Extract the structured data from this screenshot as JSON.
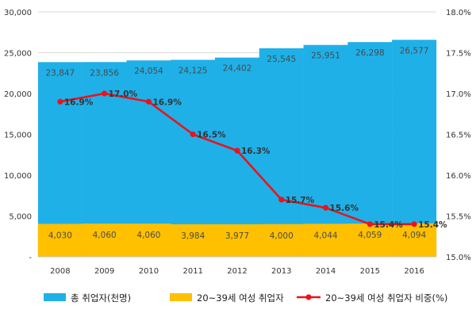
{
  "chart_data": {
    "type": "bar",
    "categories": [
      "2008",
      "2009",
      "2010",
      "2011",
      "2012",
      "2013",
      "2014",
      "2015",
      "2016"
    ],
    "series": [
      {
        "name": "총 취업자(천명)",
        "kind": "bar",
        "axis": "left",
        "color": "#1fb0e8",
        "values": [
          23847,
          23856,
          24054,
          24125,
          24402,
          25545,
          25951,
          26298,
          26577
        ],
        "labels": [
          "23,847",
          "23,856",
          "24,054",
          "24,125",
          "24,402",
          "25,545",
          "25,951",
          "26,298",
          "26,577"
        ]
      },
      {
        "name": "20~39세 여성 취업자",
        "kind": "bar",
        "axis": "left",
        "color": "#ffc000",
        "values": [
          4030,
          4060,
          4060,
          3984,
          3977,
          4000,
          4044,
          4059,
          4094
        ],
        "labels": [
          "4,030",
          "4,060",
          "4,060",
          "3,984",
          "3,977",
          "4,000",
          "4,044",
          "4,059",
          "4,094"
        ]
      },
      {
        "name": "20~39세 여성 취업자 비중(%)",
        "kind": "line",
        "axis": "right",
        "color": "#e8141c",
        "values": [
          16.9,
          17.0,
          16.9,
          16.5,
          16.3,
          15.7,
          15.6,
          15.4,
          15.4
        ],
        "labels": [
          "16.9%",
          "17.0%",
          "16.9%",
          "16.5%",
          "16.3%",
          "15.7%",
          "15.6%",
          "15.4%",
          "15.4%"
        ]
      }
    ],
    "y_left": {
      "range": [
        0,
        30000
      ],
      "ticks": [
        0,
        5000,
        10000,
        15000,
        20000,
        25000,
        30000
      ],
      "tick_labels": [
        "-",
        "5,000",
        "10,000",
        "15,000",
        "20,000",
        "25,000",
        "30,000"
      ]
    },
    "y_right": {
      "range": [
        15.0,
        18.0
      ],
      "ticks": [
        15.0,
        15.5,
        16.0,
        16.5,
        17.0,
        17.5,
        18.0
      ],
      "tick_labels": [
        "15.0%",
        "15.5%",
        "16.0%",
        "16.5%",
        "17.0%",
        "17.5%",
        "18.0%"
      ]
    },
    "grid": true,
    "legend": "bottom"
  }
}
